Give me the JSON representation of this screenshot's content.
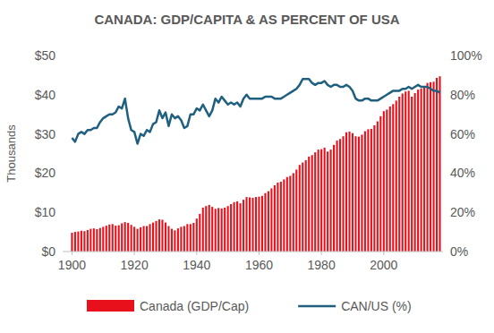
{
  "chart_data": {
    "type": "bar",
    "title": "CANADA: GDP/CAPITA & AS PERCENT OF USA",
    "y_label": "Thousands",
    "x": [
      1900,
      1901,
      1902,
      1903,
      1904,
      1905,
      1906,
      1907,
      1908,
      1909,
      1910,
      1911,
      1912,
      1913,
      1914,
      1915,
      1916,
      1917,
      1918,
      1919,
      1920,
      1921,
      1922,
      1923,
      1924,
      1925,
      1926,
      1927,
      1928,
      1929,
      1930,
      1931,
      1932,
      1933,
      1934,
      1935,
      1936,
      1937,
      1938,
      1939,
      1940,
      1941,
      1942,
      1943,
      1944,
      1945,
      1946,
      1947,
      1948,
      1949,
      1950,
      1951,
      1952,
      1953,
      1954,
      1955,
      1956,
      1957,
      1958,
      1959,
      1960,
      1961,
      1962,
      1963,
      1964,
      1965,
      1966,
      1967,
      1968,
      1969,
      1970,
      1971,
      1972,
      1973,
      1974,
      1975,
      1976,
      1977,
      1978,
      1979,
      1980,
      1981,
      1982,
      1983,
      1984,
      1985,
      1986,
      1987,
      1988,
      1989,
      1990,
      1991,
      1992,
      1993,
      1994,
      1995,
      1996,
      1997,
      1998,
      1999,
      2000,
      2001,
      2002,
      2003,
      2004,
      2005,
      2006,
      2007,
      2008,
      2009,
      2010,
      2011,
      2012,
      2013,
      2014,
      2015,
      2016,
      2017,
      2018
    ],
    "xlim": [
      1897,
      2019
    ],
    "xticks": [
      1900,
      1920,
      1940,
      1960,
      1980,
      2000
    ],
    "ylim": [
      0,
      50
    ],
    "yticks": [
      {
        "value": 0,
        "label": "$0"
      },
      {
        "value": 10,
        "label": "$10"
      },
      {
        "value": 20,
        "label": "$20"
      },
      {
        "value": 30,
        "label": "$30"
      },
      {
        "value": 40,
        "label": "$40"
      },
      {
        "value": 50,
        "label": "$50"
      }
    ],
    "y2lim": [
      0,
      100
    ],
    "y2ticks": [
      {
        "value": 0,
        "label": "0%"
      },
      {
        "value": 20,
        "label": "20%"
      },
      {
        "value": 40,
        "label": "40%"
      },
      {
        "value": 60,
        "label": "60%"
      },
      {
        "value": 80,
        "label": "80%"
      },
      {
        "value": 100,
        "label": "100%"
      }
    ],
    "grid": false,
    "legend": "bottom",
    "series": [
      {
        "name": "Canada (GDP/Cap)",
        "type": "bar",
        "color": "#e8101a",
        "values": [
          4.8,
          5.0,
          5.1,
          5.3,
          5.2,
          5.5,
          5.8,
          5.9,
          5.7,
          6.0,
          6.3,
          6.6,
          6.9,
          7.0,
          6.6,
          6.7,
          7.2,
          7.5,
          7.3,
          6.8,
          6.3,
          5.8,
          6.2,
          6.5,
          6.5,
          7.0,
          7.4,
          7.8,
          8.2,
          8.1,
          7.4,
          6.5,
          5.8,
          5.4,
          5.9,
          6.3,
          6.5,
          7.0,
          7.0,
          7.3,
          8.4,
          9.6,
          11.2,
          11.6,
          11.9,
          11.4,
          10.9,
          11.1,
          11.0,
          11.2,
          11.6,
          12.1,
          12.6,
          12.8,
          12.3,
          13.2,
          13.9,
          13.8,
          13.7,
          13.9,
          14.0,
          14.2,
          14.9,
          15.4,
          16.1,
          16.9,
          17.6,
          17.8,
          18.4,
          19.0,
          19.3,
          20.0,
          20.9,
          22.1,
          22.7,
          23.3,
          24.2,
          24.6,
          25.3,
          26.0,
          26.1,
          26.5,
          25.5,
          26.0,
          27.2,
          28.3,
          28.7,
          29.4,
          30.4,
          30.6,
          30.2,
          29.4,
          29.3,
          29.8,
          30.7,
          31.2,
          31.3,
          32.2,
          33.2,
          34.5,
          35.8,
          36.2,
          37.0,
          37.6,
          38.5,
          39.5,
          40.3,
          40.8,
          41.0,
          39.5,
          40.4,
          41.3,
          41.6,
          42.2,
          43.0,
          43.2,
          43.3,
          44.3,
          44.7
        ]
      },
      {
        "name": "CAN/US (%)",
        "type": "line",
        "axis": "y2",
        "color": "#1f5f7f",
        "values": [
          58,
          56,
          60,
          61,
          60,
          62,
          62,
          63,
          63,
          66,
          68,
          69,
          70,
          70,
          71,
          74,
          73,
          78,
          68,
          62,
          61,
          55,
          60,
          59,
          62,
          61,
          65,
          66,
          72,
          68,
          71,
          64,
          70,
          68,
          69,
          67,
          63,
          64,
          70,
          70,
          73,
          72,
          75,
          72,
          69,
          72,
          78,
          76,
          79,
          77,
          75,
          76,
          75,
          76,
          74,
          78,
          80,
          78,
          78,
          78,
          78,
          78,
          79,
          79,
          79,
          78,
          78,
          78,
          79,
          80,
          81,
          82,
          83,
          85,
          88,
          88,
          88,
          86,
          85,
          86,
          86,
          87,
          85,
          84,
          85,
          85,
          84,
          84,
          85,
          84,
          82,
          78,
          77,
          77,
          78,
          78,
          77,
          77,
          77,
          78,
          79,
          80,
          81,
          82,
          82,
          82,
          83,
          83,
          84,
          83,
          84,
          85,
          84,
          84,
          84,
          83,
          82,
          82,
          81
        ]
      }
    ]
  }
}
